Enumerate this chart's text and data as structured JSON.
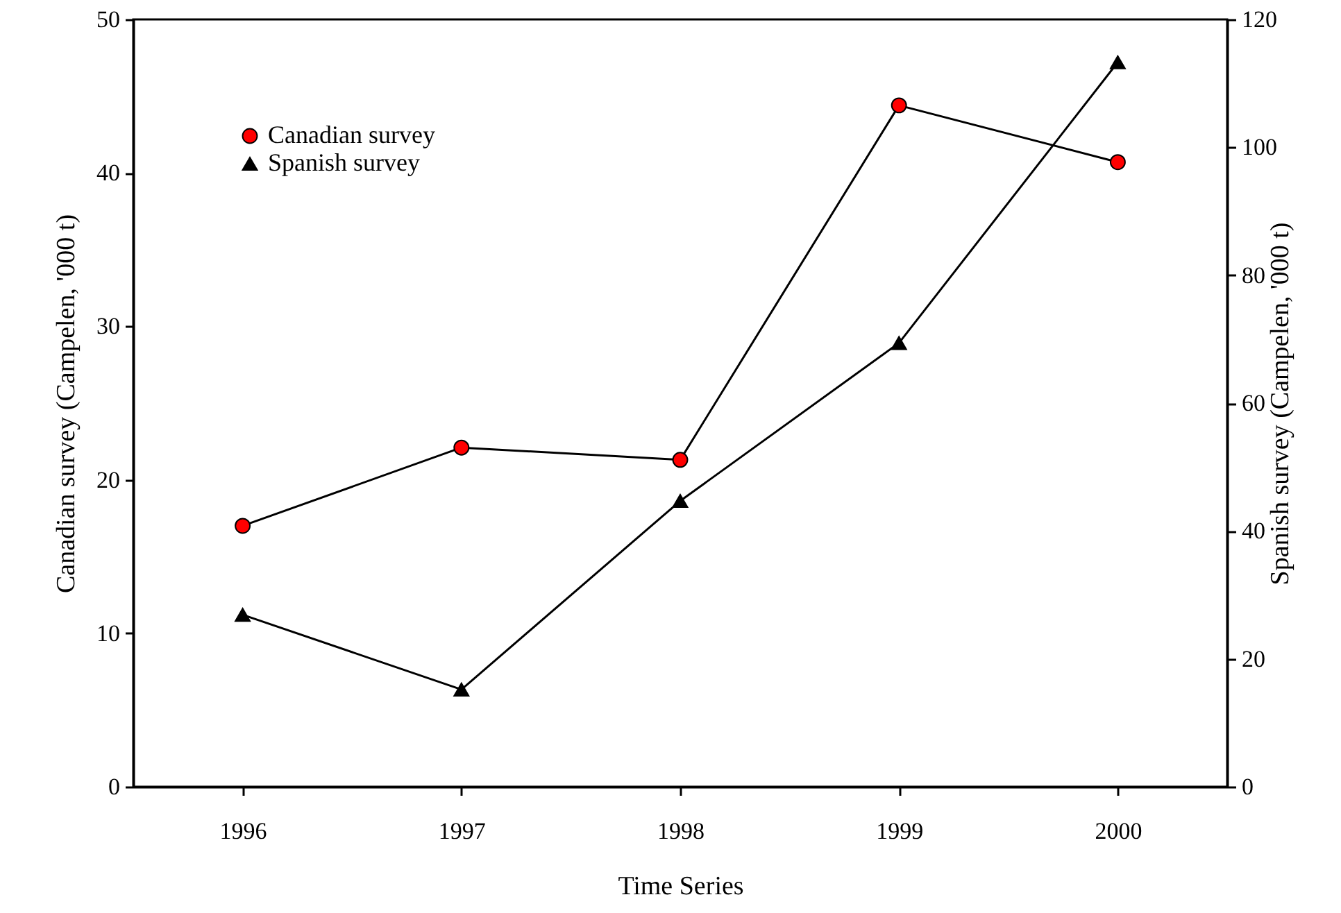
{
  "chart_data": {
    "type": "line",
    "xlabel": "Time Series",
    "ylabel": "Canadian survey (Campelen, '000 t)",
    "y2label": "Spanish survey (Campelen, '000 t)",
    "x": [
      1996,
      1997,
      1998,
      1999,
      2000
    ],
    "xlim": [
      1995.5,
      2000.5
    ],
    "xticks": [
      1996,
      1997,
      1998,
      1999,
      2000
    ],
    "ylim": [
      0,
      50
    ],
    "yticks": [
      0,
      10,
      20,
      30,
      40,
      50
    ],
    "y2lim": [
      0,
      120
    ],
    "y2ticks": [
      0,
      20,
      40,
      60,
      80,
      100,
      120
    ],
    "series": [
      {
        "name": "Canadian survey",
        "color": "#ff0000",
        "marker": "circle",
        "values": [
          17.0,
          22.1,
          21.3,
          44.4,
          40.7
        ]
      },
      {
        "name": "Spanish survey",
        "color": "#000000",
        "marker": "triangle",
        "axis": "y2",
        "values": [
          26.9,
          15.2,
          44.7,
          69.4,
          113.3
        ]
      }
    ],
    "grid": false,
    "legend": "top left",
    "line_style": "solid"
  }
}
